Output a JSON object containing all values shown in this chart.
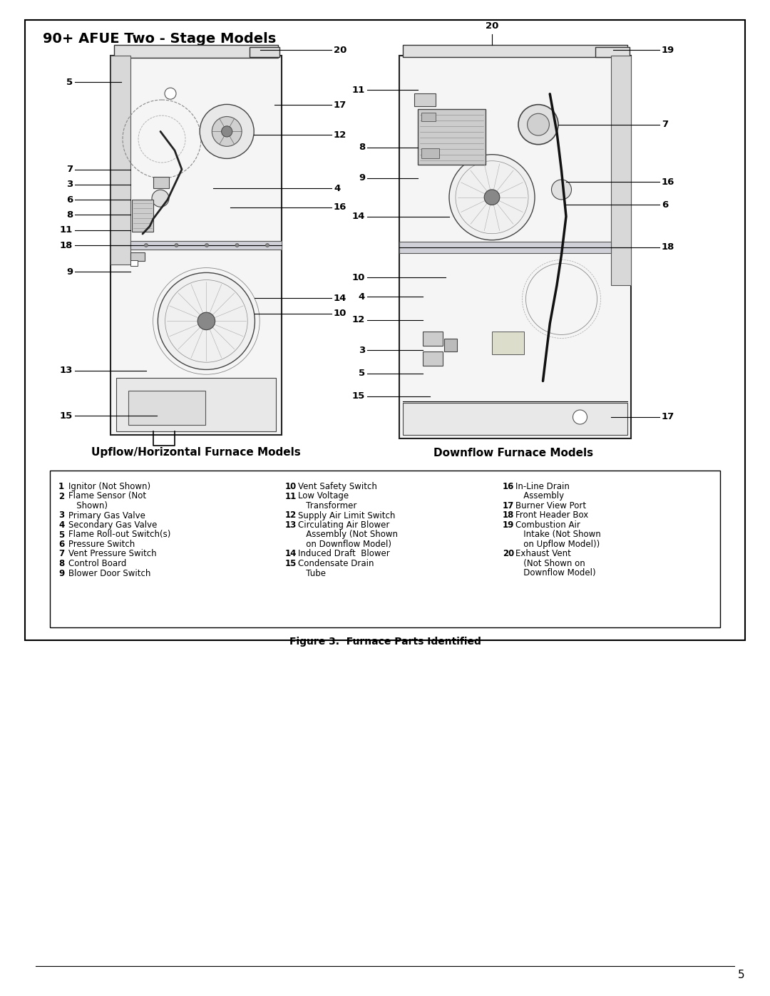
{
  "title": "90+ AFUE Two - Stage Models",
  "upflow_label": "Upflow/Horizontal Furnace Models",
  "downflow_label": "Downflow Furnace Models",
  "figure_caption": "Figure 3.  Furnace Parts Identified",
  "page_number": "5",
  "bg_color": "#ffffff",
  "text_color": "#000000",
  "col1_items": [
    [
      "1",
      " Ignitor (Not Shown)"
    ],
    [
      "2",
      " Flame Sensor (Not\n   Shown)"
    ],
    [
      "3",
      " Primary Gas Valve"
    ],
    [
      "4",
      " Secondary Gas Valve"
    ],
    [
      "5",
      " Flame Roll-out Switch(s)"
    ],
    [
      "6",
      " Pressure Switch"
    ],
    [
      "7",
      " Vent Pressure Switch"
    ],
    [
      "8",
      " Control Board"
    ],
    [
      "9",
      " Blower Door Switch"
    ]
  ],
  "col2_items": [
    [
      "10",
      "  Vent Safety Switch"
    ],
    [
      "11",
      "  Low Voltage\n    Transformer"
    ],
    [
      "12",
      "  Supply Air Limit Switch"
    ],
    [
      "13",
      "  Circulating Air Blower\n    Assembly (Not Shown\n    on Downflow Model)"
    ],
    [
      "14",
      "  Induced Draft  Blower"
    ],
    [
      "15",
      "  Condensate Drain\n    Tube"
    ]
  ],
  "col3_items": [
    [
      "16",
      "  In-Line Drain\n    Assembly"
    ],
    [
      "17",
      "  Burner View Port"
    ],
    [
      "18",
      "  Front Header Box"
    ],
    [
      "19",
      "  Combustion Air\n    Intake (Not Shown\n    on Upflow Model))"
    ],
    [
      "20",
      "  Exhaust Vent\n    (Not Shown on\n    Downflow Model)"
    ]
  ]
}
